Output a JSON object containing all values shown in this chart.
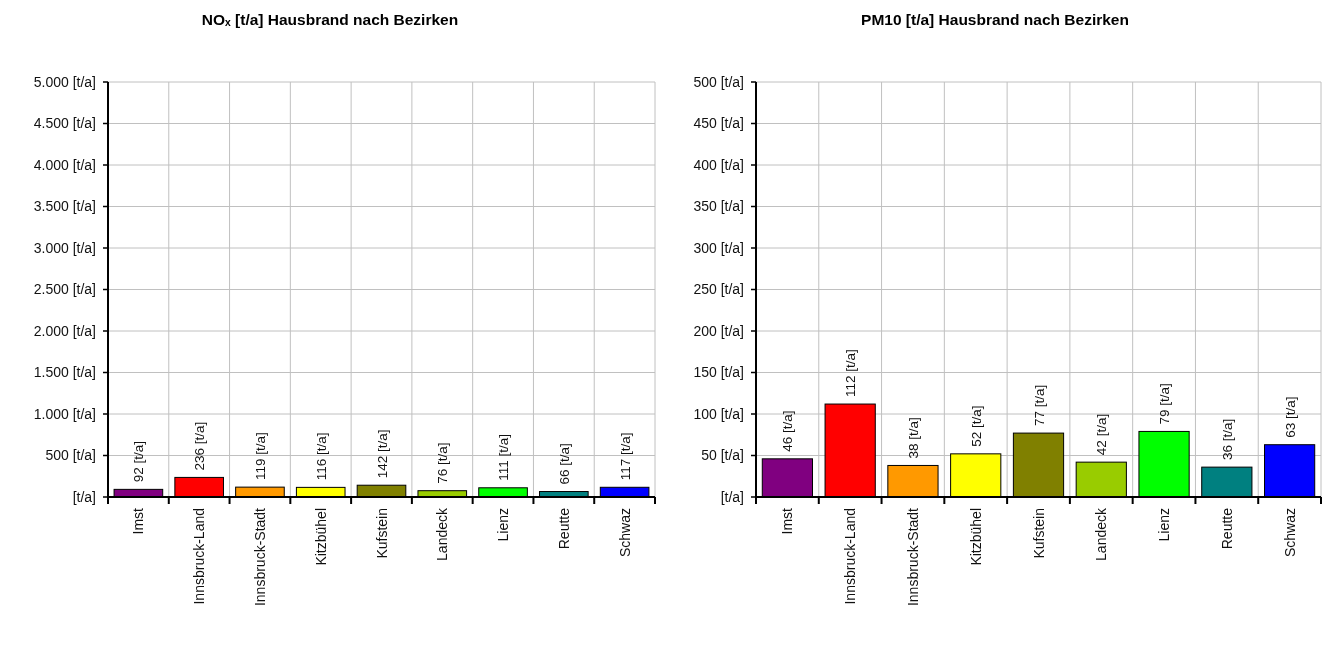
{
  "chart_data": [
    {
      "type": "bar",
      "title": "NOₓ [t/a] Hausbrand nach Bezirken",
      "categories": [
        "Imst",
        "Innsbruck-Land",
        "Innsbruck-Stadt",
        "Kitzbühel",
        "Kufstein",
        "Landeck",
        "Lienz",
        "Reutte",
        "Schwaz"
      ],
      "values": [
        92,
        236,
        119,
        116,
        142,
        76,
        111,
        66,
        117
      ],
      "colors": [
        "#800080",
        "#ff0000",
        "#ff9900",
        "#ffff00",
        "#808000",
        "#99cc00",
        "#00ff00",
        "#008080",
        "#0000ff"
      ],
      "value_labels": [
        "92 [t/a]",
        "236 [t/a]",
        "119 [t/a]",
        "116 [t/a]",
        "142 [t/a]",
        "76 [t/a]",
        "111 [t/a]",
        "66 [t/a]",
        "117 [t/a]"
      ],
      "ylim": [
        0,
        5000
      ],
      "yticks": [
        {
          "value": 0,
          "label": "[t/a]"
        },
        {
          "value": 500,
          "label": "500 [t/a]"
        },
        {
          "value": 1000,
          "label": "1.000 [t/a]"
        },
        {
          "value": 1500,
          "label": "1.500 [t/a]"
        },
        {
          "value": 2000,
          "label": "2.000 [t/a]"
        },
        {
          "value": 2500,
          "label": "2.500 [t/a]"
        },
        {
          "value": 3000,
          "label": "3.000 [t/a]"
        },
        {
          "value": 3500,
          "label": "3.500 [t/a]"
        },
        {
          "value": 4000,
          "label": "4.000 [t/a]"
        },
        {
          "value": 4500,
          "label": "4.500 [t/a]"
        },
        {
          "value": 5000,
          "label": "5.000 [t/a]"
        }
      ],
      "grid": true
    },
    {
      "type": "bar",
      "title": "PM10 [t/a] Hausbrand nach Bezirken",
      "categories": [
        "Imst",
        "Innsbruck-Land",
        "Innsbruck-Stadt",
        "Kitzbühel",
        "Kufstein",
        "Landeck",
        "Lienz",
        "Reutte",
        "Schwaz"
      ],
      "values": [
        46,
        112,
        38,
        52,
        77,
        42,
        79,
        36,
        63
      ],
      "colors": [
        "#800080",
        "#ff0000",
        "#ff9900",
        "#ffff00",
        "#808000",
        "#99cc00",
        "#00ff00",
        "#008080",
        "#0000ff"
      ],
      "value_labels": [
        "46 [t/a]",
        "112 [t/a]",
        "38 [t/a]",
        "52 [t/a]",
        "77 [t/a]",
        "42 [t/a]",
        "79 [t/a]",
        "36 [t/a]",
        "63 [t/a]"
      ],
      "ylim": [
        0,
        500
      ],
      "yticks": [
        {
          "value": 0,
          "label": "[t/a]"
        },
        {
          "value": 50,
          "label": "50 [t/a]"
        },
        {
          "value": 100,
          "label": "100 [t/a]"
        },
        {
          "value": 150,
          "label": "150 [t/a]"
        },
        {
          "value": 200,
          "label": "200 [t/a]"
        },
        {
          "value": 250,
          "label": "250 [t/a]"
        },
        {
          "value": 300,
          "label": "300 [t/a]"
        },
        {
          "value": 350,
          "label": "350 [t/a]"
        },
        {
          "value": 400,
          "label": "400 [t/a]"
        },
        {
          "value": 450,
          "label": "450 [t/a]"
        },
        {
          "value": 500,
          "label": "500 [t/a]"
        }
      ],
      "grid": true
    }
  ]
}
